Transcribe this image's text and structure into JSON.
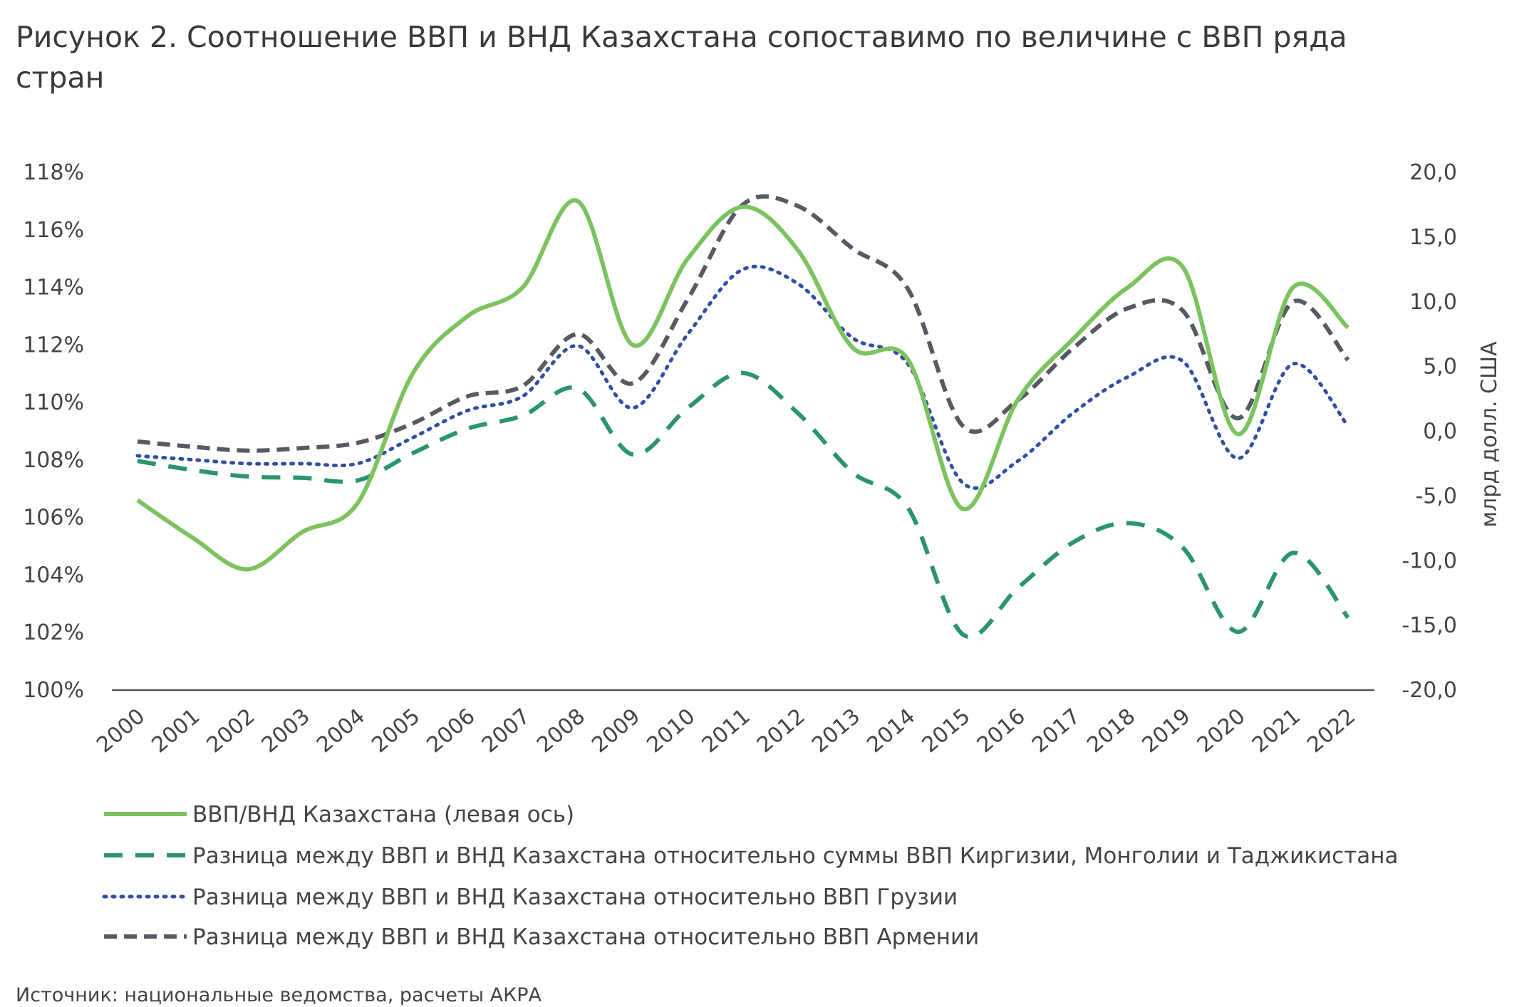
{
  "chart_data": {
    "type": "line",
    "title": "Рисунок 2. Соотношение ВВП и ВНД Казахстана сопоставимо по величине с ВВП ряда стран",
    "x": [
      "2000",
      "2001",
      "2002",
      "2003",
      "2004",
      "2005",
      "2006",
      "2007",
      "2008",
      "2009",
      "2010",
      "2011",
      "2012",
      "2013",
      "2014",
      "2015",
      "2016",
      "2017",
      "2018",
      "2019",
      "2020",
      "2021",
      "2022"
    ],
    "y_left": {
      "label": "",
      "ylim": [
        100,
        118
      ],
      "ticks": [
        "118%",
        "116%",
        "114%",
        "112%",
        "110%",
        "108%",
        "106%",
        "104%",
        "102%",
        "100%"
      ]
    },
    "y_right": {
      "label": "млрд долл. США",
      "ylim": [
        -20,
        20
      ],
      "ticks": [
        "20,0",
        "15,0",
        "10,0",
        "5,0",
        "0,0",
        "-5,0",
        "-10,0",
        "-15,0",
        "-20,0"
      ]
    },
    "grid": false,
    "legend_position": "bottom",
    "series": [
      {
        "name": "ВВП/ВНД Казахстана (левая ось)",
        "axis": "left",
        "style": "solid",
        "color": "#7cc35f",
        "values": [
          106.6,
          105.3,
          104.2,
          105.5,
          106.5,
          111.0,
          113.0,
          114.0,
          117.0,
          112.0,
          115.0,
          116.8,
          115.3,
          111.9,
          111.5,
          106.3,
          110.1,
          112.2,
          114.0,
          114.7,
          108.9,
          114.0,
          112.6
        ]
      },
      {
        "name": "Разница между ВВП и ВНД Казахстана относительно  суммы ВВП Киргизии, Монголии и Таджикистана",
        "axis": "right",
        "style": "long-dash",
        "color": "#2a9470",
        "values": [
          -2.3,
          -3.0,
          -3.5,
          -3.6,
          -3.8,
          -1.7,
          0.2,
          1.2,
          3.3,
          -1.8,
          1.8,
          4.5,
          1.4,
          -3.2,
          -5.9,
          -15.7,
          -12.1,
          -8.6,
          -7.1,
          -9.0,
          -15.5,
          -9.4,
          -14.4
        ]
      },
      {
        "name": "Разница между ВВП и ВНД Казахстана относительно  ВВП Грузии",
        "axis": "right",
        "style": "dotted",
        "color": "#2f4fa3",
        "values": [
          -1.9,
          -2.2,
          -2.5,
          -2.5,
          -2.5,
          -0.5,
          1.6,
          2.7,
          6.6,
          1.8,
          7.5,
          12.5,
          11.4,
          7.2,
          5.2,
          -4.0,
          -2.3,
          1.4,
          4.2,
          5.4,
          -2.1,
          5.2,
          0.4
        ]
      },
      {
        "name": "Разница между ВВП и ВНД Казахстана относительно  ВВП Армении",
        "axis": "right",
        "style": "dash",
        "color": "#555a63",
        "values": [
          -0.8,
          -1.2,
          -1.5,
          -1.3,
          -0.9,
          0.6,
          2.7,
          3.5,
          7.5,
          3.7,
          10.2,
          17.5,
          17.4,
          14.1,
          11.0,
          0.4,
          2.4,
          6.4,
          9.5,
          9.3,
          1.0,
          10.0,
          5.5
        ]
      }
    ]
  },
  "source": "Источник: национальные ведомства, расчеты АКРА"
}
